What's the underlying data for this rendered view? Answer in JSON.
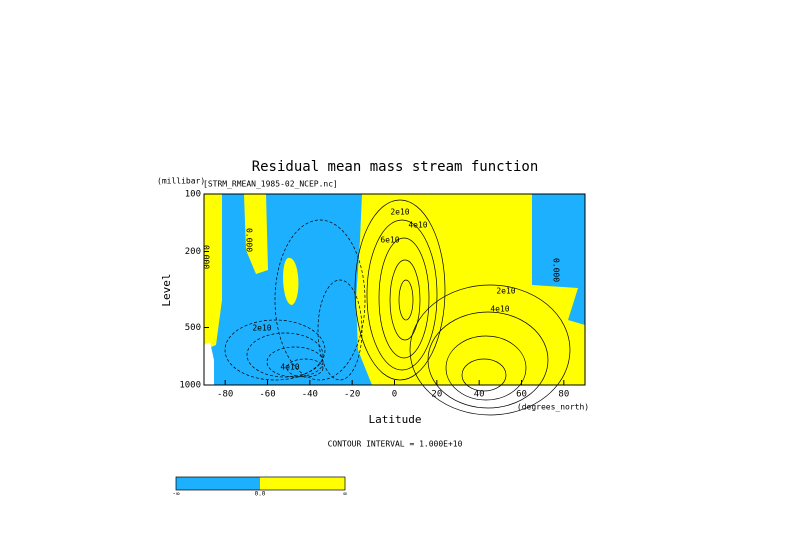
{
  "chart_data": {
    "type": "contour",
    "title": "Residual mean mass stream function",
    "subtitle": "[STRM_RMEAN_1985-02_NCEP.nc]",
    "x_label": "Latitude",
    "x_unit": "(degrees_north)",
    "y_label": "Level",
    "y_unit": "(millibar)",
    "xlim": [
      -90,
      90
    ],
    "xticks": [
      -80,
      -60,
      -40,
      -20,
      0,
      20,
      40,
      60,
      80
    ],
    "ylim": [
      1000,
      100
    ],
    "yticks": [
      100,
      200,
      500,
      1000
    ],
    "y_log": true,
    "note": "CONTOUR INTERVAL = 1.000E+10",
    "colors": [
      "#1cb0ff",
      "#ffff00"
    ],
    "annotations": [
      "0.000",
      "0.000",
      "2e10",
      "4e10",
      "2e10",
      "4e10",
      "6e10",
      "2e10",
      "4e10",
      "0.000"
    ],
    "colorbar": {
      "labels": [
        "-∞",
        "0.0",
        "∞"
      ]
    }
  }
}
